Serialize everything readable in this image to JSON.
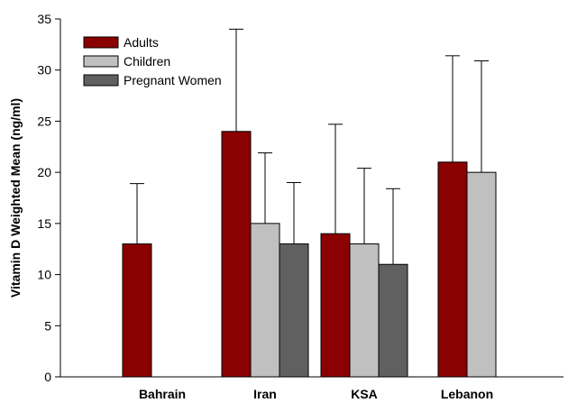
{
  "chart_data": {
    "type": "bar",
    "ylabel": "Vitamin D Weighted Mean (ng/ml)",
    "categories": [
      "Bahrain",
      "Iran",
      "KSA",
      "Lebanon"
    ],
    "ylim": [
      0,
      35
    ],
    "yticks": [
      0,
      5,
      10,
      15,
      20,
      25,
      30,
      35
    ],
    "legend_position": "top-left",
    "grid": false,
    "series": [
      {
        "name": "Adults",
        "color": "#8B0000",
        "values": [
          13,
          24,
          14,
          21
        ],
        "error_upper": [
          18.9,
          34.0,
          24.7,
          31.4
        ]
      },
      {
        "name": "Children",
        "color": "#C0C0C0",
        "values": [
          null,
          15,
          13,
          20
        ],
        "error_upper": [
          null,
          21.9,
          20.4,
          30.9
        ]
      },
      {
        "name": "Pregnant Women",
        "color": "#606060",
        "values": [
          null,
          13,
          11,
          null
        ],
        "error_upper": [
          null,
          19.0,
          18.4,
          null
        ]
      }
    ]
  }
}
